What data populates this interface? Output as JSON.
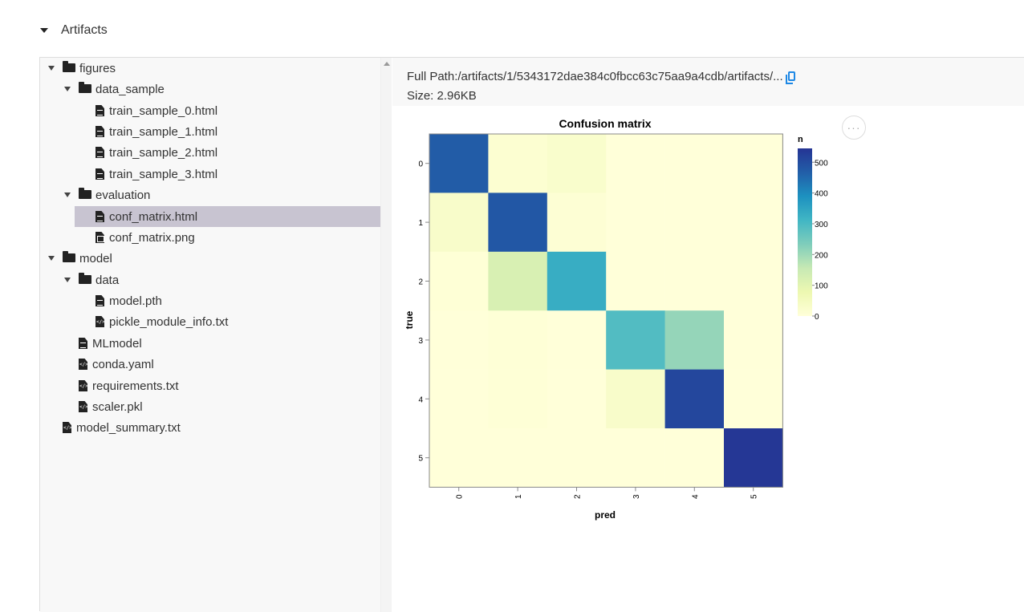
{
  "section": {
    "title": "Artifacts"
  },
  "tree": [
    {
      "label": "figures",
      "kind": "folder",
      "depth": 0,
      "expanded": true
    },
    {
      "label": "data_sample",
      "kind": "folder",
      "depth": 1,
      "expanded": true
    },
    {
      "label": "train_sample_0.html",
      "kind": "doc",
      "depth": 2
    },
    {
      "label": "train_sample_1.html",
      "kind": "doc",
      "depth": 2
    },
    {
      "label": "train_sample_2.html",
      "kind": "doc",
      "depth": 2
    },
    {
      "label": "train_sample_3.html",
      "kind": "doc",
      "depth": 2
    },
    {
      "label": "evaluation",
      "kind": "folder",
      "depth": 1,
      "expanded": true
    },
    {
      "label": "conf_matrix.html",
      "kind": "doc",
      "depth": 2,
      "selected": true
    },
    {
      "label": "conf_matrix.png",
      "kind": "img",
      "depth": 2
    },
    {
      "label": "model",
      "kind": "folder",
      "depth": 0,
      "expanded": true
    },
    {
      "label": "data",
      "kind": "folder",
      "depth": 1,
      "expanded": true
    },
    {
      "label": "model.pth",
      "kind": "doc",
      "depth": 2
    },
    {
      "label": "pickle_module_info.txt",
      "kind": "code",
      "depth": 2
    },
    {
      "label": "MLmodel",
      "kind": "doc",
      "depth": 1
    },
    {
      "label": "conda.yaml",
      "kind": "code",
      "depth": 1
    },
    {
      "label": "requirements.txt",
      "kind": "code",
      "depth": 1
    },
    {
      "label": "scaler.pkl",
      "kind": "code",
      "depth": 1
    },
    {
      "label": "model_summary.txt",
      "kind": "code",
      "depth": 0
    }
  ],
  "file_info": {
    "full_path": "Full Path:/artifacts/1/5343172dae384c0fbcc63c75aa9a4cdb/artifacts/...",
    "size": "Size: 2.96KB"
  },
  "more_button": {
    "label": "···"
  },
  "chart_data": {
    "type": "heatmap",
    "title": "Confusion matrix",
    "xlabel": "pred",
    "ylabel": "true",
    "x_categories": [
      "0",
      "1",
      "2",
      "3",
      "4",
      "5"
    ],
    "y_categories": [
      "0",
      "1",
      "2",
      "3",
      "4",
      "5"
    ],
    "values": [
      [
        470,
        15,
        25,
        0,
        0,
        0
      ],
      [
        30,
        480,
        10,
        0,
        0,
        0
      ],
      [
        5,
        120,
        330,
        0,
        0,
        0
      ],
      [
        0,
        5,
        0,
        290,
        210,
        0
      ],
      [
        0,
        5,
        0,
        30,
        510,
        0
      ],
      [
        0,
        0,
        0,
        0,
        0,
        540
      ]
    ],
    "legend": {
      "title": "n",
      "ticks": [
        "500",
        "400",
        "300",
        "200",
        "100",
        "0"
      ],
      "tick_values": [
        500,
        400,
        300,
        200,
        100,
        0
      ],
      "min": 0,
      "max": 545
    },
    "colors": [
      "#ffffd9",
      "#edf8b1",
      "#c7e9b4",
      "#7fcdbb",
      "#41b6c4",
      "#1d91c0",
      "#225ea8",
      "#253494"
    ]
  }
}
